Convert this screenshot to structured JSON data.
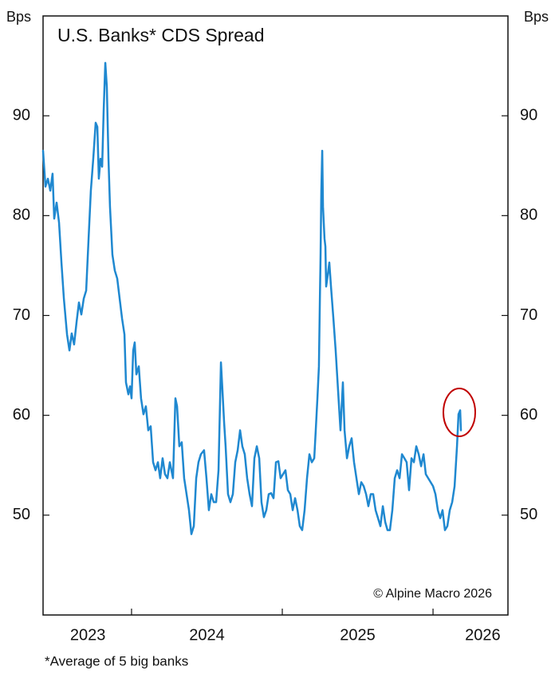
{
  "chart_data": {
    "type": "line",
    "title": "U.S. Banks* CDS Spread",
    "y_label": "Bps",
    "y2_label": "Bps",
    "source": "© Alpine Macro 2026",
    "footnote": "*Average of 5 big banks",
    "ylim": [
      40,
      100
    ],
    "yticks": [
      50,
      60,
      70,
      80,
      90
    ],
    "y2lim": [
      40,
      100
    ],
    "y2ticks": [
      50,
      60,
      70,
      80,
      90
    ],
    "xlim": [
      2023.413,
      2026.497
    ],
    "xticks": [
      2024,
      2025,
      2026
    ],
    "xtick_labels": [
      {
        "value": 2023.71,
        "label": "2023"
      },
      {
        "value": 2024.5,
        "label": "2024"
      },
      {
        "value": 2025.5,
        "label": "2025"
      },
      {
        "value": 2026.33,
        "label": "2026"
      }
    ],
    "x": [
      2023.413,
      2023.429,
      2023.445,
      2023.461,
      2023.476,
      2023.487,
      2023.503,
      2023.519,
      2023.535,
      2023.551,
      2023.572,
      2023.588,
      2023.603,
      2023.619,
      2023.635,
      2023.651,
      2023.667,
      2023.683,
      2023.699,
      2023.715,
      2023.73,
      2023.746,
      2023.762,
      2023.773,
      2023.783,
      2023.794,
      2023.805,
      2023.815,
      2023.826,
      2023.836,
      2023.847,
      2023.857,
      2023.873,
      2023.889,
      2023.905,
      2023.921,
      2023.937,
      2023.953,
      2023.963,
      2023.979,
      2023.99,
      2024.0,
      2024.011,
      2024.021,
      2024.032,
      2024.048,
      2024.063,
      2024.079,
      2024.095,
      2024.111,
      2024.127,
      2024.143,
      2024.159,
      2024.175,
      2024.19,
      2024.206,
      2024.222,
      2024.238,
      2024.254,
      2024.275,
      2024.291,
      2024.302,
      2024.317,
      2024.333,
      2024.349,
      2024.365,
      2024.381,
      2024.397,
      2024.413,
      2024.429,
      2024.444,
      2024.46,
      2024.481,
      2024.497,
      2024.513,
      2024.529,
      2024.545,
      2024.561,
      2024.577,
      2024.593,
      2024.603,
      2024.614,
      2024.624,
      2024.64,
      2024.656,
      2024.672,
      2024.688,
      2024.704,
      2024.72,
      2024.735,
      2024.751,
      2024.767,
      2024.783,
      2024.799,
      2024.815,
      2024.831,
      2024.847,
      2024.862,
      2024.878,
      2024.894,
      2024.91,
      2024.926,
      2024.942,
      2024.958,
      2024.974,
      2024.989,
      2025.005,
      2025.021,
      2025.037,
      2025.053,
      2025.069,
      2025.085,
      2025.101,
      2025.116,
      2025.132,
      2025.148,
      2025.164,
      2025.18,
      2025.196,
      2025.212,
      2025.222,
      2025.233,
      2025.243,
      2025.249,
      2025.254,
      2025.259,
      2025.265,
      2025.27,
      2025.275,
      2025.28,
      2025.286,
      2025.291,
      2025.302,
      2025.312,
      2025.323,
      2025.339,
      2025.354,
      2025.37,
      2025.386,
      2025.402,
      2025.413,
      2025.429,
      2025.444,
      2025.46,
      2025.476,
      2025.492,
      2025.508,
      2025.524,
      2025.54,
      2025.556,
      2025.571,
      2025.587,
      2025.603,
      2025.619,
      2025.635,
      2025.651,
      2025.667,
      2025.683,
      2025.698,
      2025.714,
      2025.73,
      2025.746,
      2025.762,
      2025.778,
      2025.794,
      2025.81,
      2025.825,
      2025.841,
      2025.857,
      2025.873,
      2025.889,
      2025.905,
      2025.921,
      2025.937,
      2025.952,
      2025.968,
      2025.984,
      2026.0,
      2026.016,
      2026.032,
      2026.048,
      2026.063,
      2026.079,
      2026.095,
      2026.111,
      2026.127,
      2026.143,
      2026.159,
      2026.169,
      2026.18,
      2026.185
    ],
    "series": [
      {
        "name": "U.S. Banks CDS Spread",
        "color": "#1f88d0",
        "values": [
          86.5,
          82.9,
          83.7,
          82.5,
          84.2,
          79.7,
          81.3,
          79.3,
          75.3,
          71.7,
          68.1,
          66.5,
          68.2,
          67.1,
          69.3,
          71.3,
          70.1,
          71.7,
          72.5,
          77.7,
          82.5,
          85.7,
          89.3,
          88.9,
          83.7,
          85.7,
          84.9,
          90.5,
          95.3,
          92.9,
          85.7,
          80.9,
          76.1,
          74.5,
          73.7,
          71.7,
          69.7,
          68.1,
          63.3,
          62.1,
          62.9,
          61.7,
          66.5,
          67.3,
          64.1,
          64.9,
          61.7,
          60.1,
          60.9,
          58.5,
          58.9,
          55.3,
          54.5,
          55.3,
          53.7,
          55.7,
          54.1,
          53.7,
          55.3,
          53.7,
          61.7,
          60.9,
          56.9,
          57.3,
          53.7,
          52.1,
          50.5,
          48.1,
          48.9,
          53.7,
          55.3,
          56.1,
          56.5,
          53.7,
          50.5,
          52.1,
          51.3,
          51.3,
          54.5,
          65.3,
          62.5,
          59.3,
          56.9,
          52.1,
          51.3,
          52.1,
          55.3,
          56.5,
          58.5,
          56.9,
          56.1,
          53.7,
          52.1,
          50.9,
          55.7,
          56.9,
          55.7,
          51.3,
          49.8,
          50.5,
          52.1,
          52.2,
          51.7,
          55.3,
          55.4,
          53.7,
          54.1,
          54.5,
          52.5,
          52.1,
          50.5,
          51.7,
          50.5,
          48.9,
          48.5,
          50.5,
          53.7,
          56.1,
          55.3,
          55.7,
          58.5,
          61.7,
          64.9,
          71.3,
          76.1,
          82.5,
          86.5,
          80.9,
          79.3,
          77.7,
          76.9,
          72.9,
          74.1,
          75.3,
          72.9,
          69.7,
          66.5,
          62.5,
          58.5,
          63.3,
          58.5,
          55.7,
          56.9,
          57.7,
          55.3,
          53.7,
          52.1,
          53.3,
          52.9,
          52.1,
          50.9,
          52.1,
          52.1,
          50.5,
          49.7,
          48.9,
          50.9,
          49.3,
          48.5,
          48.5,
          50.5,
          53.7,
          54.5,
          53.7,
          56.1,
          55.7,
          55.3,
          52.5,
          55.7,
          55.3,
          56.9,
          56.1,
          54.9,
          56.1,
          54.1,
          53.7,
          53.3,
          52.9,
          52.1,
          50.5,
          49.7,
          50.5,
          48.5,
          48.9,
          50.5,
          51.3,
          52.9,
          56.9,
          60.1,
          60.5,
          58.5
        ]
      }
    ]
  }
}
